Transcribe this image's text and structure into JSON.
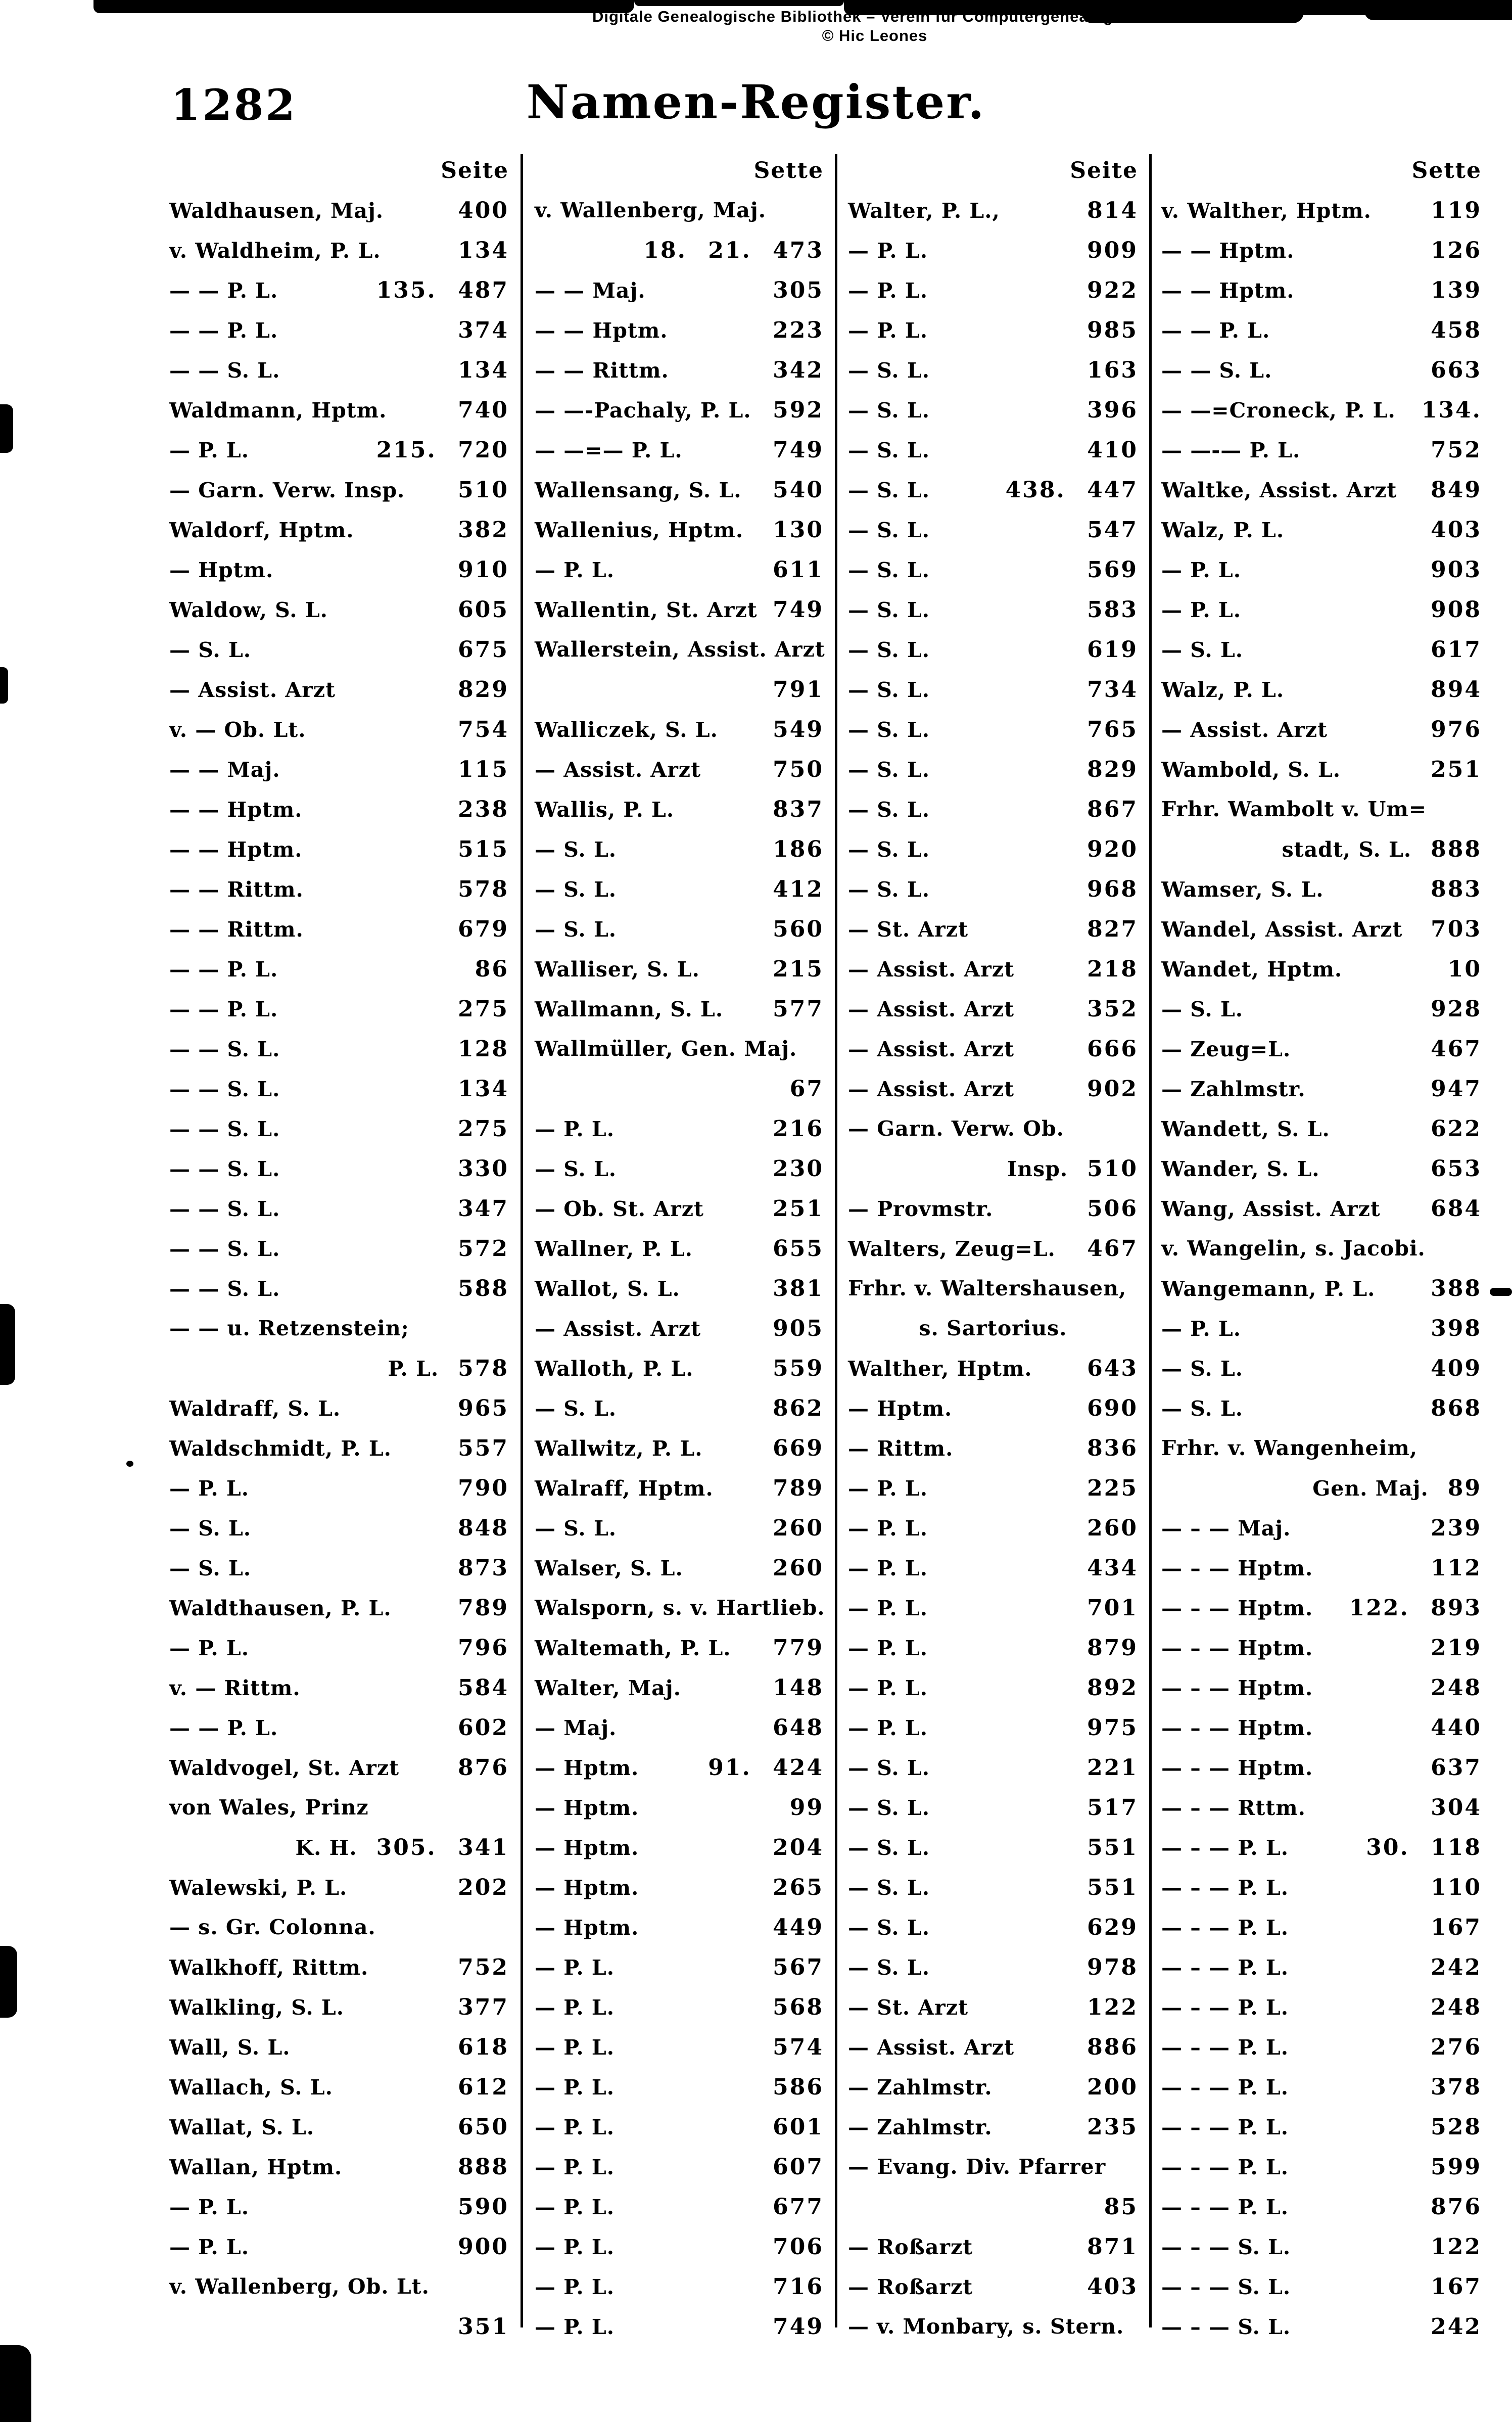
{
  "watermark": {
    "line1": "Digitale Genealogische Bibliothek – Verein fur Computergenealogie e V",
    "line2": "© Hic Leones"
  },
  "page": {
    "number": "1282",
    "title": "Namen-Register."
  },
  "columns": [
    {
      "header": "Seite",
      "rows": [
        {
          "t": "Waldhausen, Maj.",
          "p": "400"
        },
        {
          "t": "v. Waldheim, P. L.",
          "p": "134"
        },
        {
          "t": "— — P. L.",
          "p": "135. 487"
        },
        {
          "t": "— — P. L.",
          "p": "374"
        },
        {
          "t": "— — S. L.",
          "p": "134"
        },
        {
          "t": "Waldmann, Hptm.",
          "p": "740"
        },
        {
          "t": "— P. L.",
          "p": "215. 720"
        },
        {
          "t": "— Garn. Verw. Insp.",
          "p": "510"
        },
        {
          "t": "Waldorf, Hptm.",
          "p": "382"
        },
        {
          "t": "— Hptm.",
          "p": "910"
        },
        {
          "t": "Waldow, S. L.",
          "p": "605"
        },
        {
          "t": "— S. L.",
          "p": "675"
        },
        {
          "t": "— Assist. Arzt",
          "p": "829"
        },
        {
          "t": "v. — Ob. Lt.",
          "p": "754"
        },
        {
          "t": "— — Maj.",
          "p": "115"
        },
        {
          "t": "— — Hptm.",
          "p": "238"
        },
        {
          "t": "— — Hptm.",
          "p": "515"
        },
        {
          "t": "— — Rittm.",
          "p": "578"
        },
        {
          "t": "— — Rittm.",
          "p": "679"
        },
        {
          "t": "— — P. L.",
          "p": "86"
        },
        {
          "t": "— — P. L.",
          "p": "275"
        },
        {
          "t": "— — S. L.",
          "p": "128"
        },
        {
          "t": "— — S. L.",
          "p": "134"
        },
        {
          "t": "— — S. L.",
          "p": "275"
        },
        {
          "t": "— — S. L.",
          "p": "330"
        },
        {
          "t": "— — S. L.",
          "p": "347"
        },
        {
          "t": "— — S. L.",
          "p": "572"
        },
        {
          "t": "— — S. L.",
          "p": "588"
        },
        {
          "t": "— — u. Retzenstein;",
          "p": ""
        },
        {
          "t": "P. L.",
          "p": "578",
          "m": "r"
        },
        {
          "t": "Waldraff, S. L.",
          "p": "965"
        },
        {
          "t": "Waldschmidt, P. L.",
          "p": "557"
        },
        {
          "t": "— P. L.",
          "p": "790"
        },
        {
          "t": "— S. L.",
          "p": "848"
        },
        {
          "t": "— S. L.",
          "p": "873"
        },
        {
          "t": "Waldthausen, P. L.",
          "p": "789"
        },
        {
          "t": "— P. L.",
          "p": "796"
        },
        {
          "t": "v. — Rittm.",
          "p": "584"
        },
        {
          "t": "— — P. L.",
          "p": "602"
        },
        {
          "t": "Waldvogel, St. Arzt",
          "p": "876"
        },
        {
          "t": "von Wales, Prinz",
          "p": ""
        },
        {
          "t": "K. H.",
          "p": "305. 341",
          "m": "r"
        },
        {
          "t": "Walewski, P. L.",
          "p": "202"
        },
        {
          "t": "— s. Gr. Colonna.",
          "p": ""
        },
        {
          "t": "Walkhoff, Rittm.",
          "p": "752"
        },
        {
          "t": "Walkling, S. L.",
          "p": "377"
        },
        {
          "t": "Wall, S. L.",
          "p": "618"
        },
        {
          "t": "Wallach, S. L.",
          "p": "612"
        },
        {
          "t": "Wallat, S. L.",
          "p": "650"
        },
        {
          "t": "Wallan, Hptm.",
          "p": "888"
        },
        {
          "t": "— P. L.",
          "p": "590"
        },
        {
          "t": "— P. L.",
          "p": "900"
        },
        {
          "t": "v. Wallenberg, Ob. Lt.",
          "p": ""
        },
        {
          "t": "",
          "p": "351",
          "m": "r"
        }
      ]
    },
    {
      "header": "Sette",
      "rows": [
        {
          "t": "v. Wallenberg, Maj.",
          "p": ""
        },
        {
          "t": "",
          "p": "18. 21. 473",
          "m": "r"
        },
        {
          "t": "— — Maj.",
          "p": "305"
        },
        {
          "t": "— — Hptm.",
          "p": "223"
        },
        {
          "t": "— — Rittm.",
          "p": "342"
        },
        {
          "t": "— —-Pachaly, P. L.",
          "p": "592"
        },
        {
          "t": "— —=— P. L.",
          "p": "749"
        },
        {
          "t": "Wallensang, S. L.",
          "p": "540"
        },
        {
          "t": "Wallenius, Hptm.",
          "p": "130"
        },
        {
          "t": "— P. L.",
          "p": "611"
        },
        {
          "t": "Wallentin, St. Arzt",
          "p": "749"
        },
        {
          "t": "Wallerstein, Assist. Arzt",
          "p": ""
        },
        {
          "t": "",
          "p": "791",
          "m": "r"
        },
        {
          "t": "Walliczek, S. L.",
          "p": "549"
        },
        {
          "t": "— Assist. Arzt",
          "p": "750"
        },
        {
          "t": "Wallis, P. L.",
          "p": "837"
        },
        {
          "t": "— S. L.",
          "p": "186"
        },
        {
          "t": "— S. L.",
          "p": "412"
        },
        {
          "t": "— S. L.",
          "p": "560"
        },
        {
          "t": "Walliser, S. L.",
          "p": "215"
        },
        {
          "t": "Wallmann, S. L.",
          "p": "577"
        },
        {
          "t": "Wallmüller, Gen. Maj.",
          "p": ""
        },
        {
          "t": "",
          "p": "67",
          "m": "r"
        },
        {
          "t": "— P. L.",
          "p": "216"
        },
        {
          "t": "— S. L.",
          "p": "230"
        },
        {
          "t": "— Ob. St. Arzt",
          "p": "251"
        },
        {
          "t": "Wallner, P. L.",
          "p": "655"
        },
        {
          "t": "Wallot, S. L.",
          "p": "381"
        },
        {
          "t": "— Assist. Arzt",
          "p": "905"
        },
        {
          "t": "Walloth, P. L.",
          "p": "559"
        },
        {
          "t": "— S. L.",
          "p": "862"
        },
        {
          "t": "Wallwitz, P. L.",
          "p": "669"
        },
        {
          "t": "Walraff, Hptm.",
          "p": "789"
        },
        {
          "t": "— S. L.",
          "p": "260"
        },
        {
          "t": "Walser, S. L.",
          "p": "260"
        },
        {
          "t": "Walsporn, s. v. Hartlieb.",
          "p": ""
        },
        {
          "t": "Waltemath, P. L.",
          "p": "779"
        },
        {
          "t": "Walter, Maj.",
          "p": "148"
        },
        {
          "t": "— Maj.",
          "p": "648"
        },
        {
          "t": "— Hptm.",
          "p": "91. 424"
        },
        {
          "t": "— Hptm.",
          "p": "99"
        },
        {
          "t": "— Hptm.",
          "p": "204"
        },
        {
          "t": "— Hptm.",
          "p": "265"
        },
        {
          "t": "— Hptm.",
          "p": "449"
        },
        {
          "t": "— P. L.",
          "p": "567"
        },
        {
          "t": "— P. L.",
          "p": "568"
        },
        {
          "t": "— P. L.",
          "p": "574"
        },
        {
          "t": "— P. L.",
          "p": "586"
        },
        {
          "t": "— P. L.",
          "p": "601"
        },
        {
          "t": "— P. L.",
          "p": "607"
        },
        {
          "t": "— P. L.",
          "p": "677"
        },
        {
          "t": "— P. L.",
          "p": "706"
        },
        {
          "t": "— P. L.",
          "p": "716"
        },
        {
          "t": "— P. L.",
          "p": "749"
        }
      ]
    },
    {
      "header": "Seite",
      "rows": [
        {
          "t": "Walter, P. L.,",
          "p": "814"
        },
        {
          "t": "— P. L.",
          "p": "909"
        },
        {
          "t": "— P. L.",
          "p": "922"
        },
        {
          "t": "— P. L.",
          "p": "985"
        },
        {
          "t": "— S. L.",
          "p": "163"
        },
        {
          "t": "— S. L.",
          "p": "396"
        },
        {
          "t": "— S. L.",
          "p": "410"
        },
        {
          "t": "— S. L.",
          "p": "438. 447"
        },
        {
          "t": "— S. L.",
          "p": "547"
        },
        {
          "t": "— S. L.",
          "p": "569"
        },
        {
          "t": "— S. L.",
          "p": "583"
        },
        {
          "t": "— S. L.",
          "p": "619"
        },
        {
          "t": "— S. L.",
          "p": "734"
        },
        {
          "t": "— S. L.",
          "p": "765"
        },
        {
          "t": "— S. L.",
          "p": "829"
        },
        {
          "t": "— S. L.",
          "p": "867"
        },
        {
          "t": "— S. L.",
          "p": "920"
        },
        {
          "t": "— S. L.",
          "p": "968"
        },
        {
          "t": "— St. Arzt",
          "p": "827"
        },
        {
          "t": "— Assist. Arzt",
          "p": "218"
        },
        {
          "t": "— Assist. Arzt",
          "p": "352"
        },
        {
          "t": "— Assist. Arzt",
          "p": "666"
        },
        {
          "t": "— Assist. Arzt",
          "p": "902"
        },
        {
          "t": "— Garn. Verw. Ob.",
          "p": ""
        },
        {
          "t": "Insp.",
          "p": "510",
          "m": "r"
        },
        {
          "t": "— Provmstr.",
          "p": "506"
        },
        {
          "t": "Walters, Zeug=L.",
          "p": "467"
        },
        {
          "t": "Frhr. v. Waltershausen,",
          "p": ""
        },
        {
          "t": "s. Sartorius.",
          "p": "",
          "m": "c"
        },
        {
          "t": "Walther, Hptm.",
          "p": "643"
        },
        {
          "t": "— Hptm.",
          "p": "690"
        },
        {
          "t": "— Rittm.",
          "p": "836"
        },
        {
          "t": "— P. L.",
          "p": "225"
        },
        {
          "t": "— P. L.",
          "p": "260"
        },
        {
          "t": "— P. L.",
          "p": "434"
        },
        {
          "t": "— P. L.",
          "p": "701"
        },
        {
          "t": "— P. L.",
          "p": "879"
        },
        {
          "t": "— P. L.",
          "p": "892"
        },
        {
          "t": "— P. L.",
          "p": "975"
        },
        {
          "t": "— S. L.",
          "p": "221"
        },
        {
          "t": "— S. L.",
          "p": "517"
        },
        {
          "t": "— S. L.",
          "p": "551"
        },
        {
          "t": "— S. L.",
          "p": "551"
        },
        {
          "t": "— S. L.",
          "p": "629"
        },
        {
          "t": "— S. L.",
          "p": "978"
        },
        {
          "t": "— St. Arzt",
          "p": "122"
        },
        {
          "t": "— Assist. Arzt",
          "p": "886"
        },
        {
          "t": "— Zahlmstr.",
          "p": "200"
        },
        {
          "t": "— Zahlmstr.",
          "p": "235"
        },
        {
          "t": "— Evang. Div. Pfarrer",
          "p": ""
        },
        {
          "t": "",
          "p": "85",
          "m": "r"
        },
        {
          "t": "— Roßarzt",
          "p": "871"
        },
        {
          "t": "— Roßarzt",
          "p": "403"
        },
        {
          "t": "— v. Monbary, s. Stern.",
          "p": ""
        }
      ]
    },
    {
      "header": "Sette",
      "rows": [
        {
          "t": "v. Walther, Hptm.",
          "p": "119"
        },
        {
          "t": "— — Hptm.",
          "p": "126"
        },
        {
          "t": "— — Hptm.",
          "p": "139"
        },
        {
          "t": "— — P. L.",
          "p": "458"
        },
        {
          "t": "— — S. L.",
          "p": "663"
        },
        {
          "t": "— —=Croneck, P. L.",
          "p": "134."
        },
        {
          "t": "— —-— P. L.",
          "p": "752"
        },
        {
          "t": "Waltke, Assist. Arzt",
          "p": "849"
        },
        {
          "t": "Walz, P. L.",
          "p": "403"
        },
        {
          "t": "— P. L.",
          "p": "903"
        },
        {
          "t": "— P. L.",
          "p": "908"
        },
        {
          "t": "— S. L.",
          "p": "617"
        },
        {
          "t": "Walz, P. L.",
          "p": "894"
        },
        {
          "t": "— Assist. Arzt",
          "p": "976"
        },
        {
          "t": "Wambold, S. L.",
          "p": "251"
        },
        {
          "t": "Frhr. Wambolt v. Um=",
          "p": ""
        },
        {
          "t": "stadt, S. L.",
          "p": "888",
          "m": "r"
        },
        {
          "t": "Wamser, S. L.",
          "p": "883"
        },
        {
          "t": "Wandel, Assist. Arzt",
          "p": "703"
        },
        {
          "t": "Wandet, Hptm.",
          "p": "10"
        },
        {
          "t": "— S. L.",
          "p": "928"
        },
        {
          "t": "— Zeug=L.",
          "p": "467"
        },
        {
          "t": "— Zahlmstr.",
          "p": "947"
        },
        {
          "t": "Wandett, S. L.",
          "p": "622"
        },
        {
          "t": "Wander, S. L.",
          "p": "653"
        },
        {
          "t": "Wang, Assist. Arzt",
          "p": "684"
        },
        {
          "t": "v. Wangelin, s. Jacobi.",
          "p": ""
        },
        {
          "t": "Wangemann, P. L.",
          "p": "388"
        },
        {
          "t": "— P. L.",
          "p": "398"
        },
        {
          "t": "— S. L.",
          "p": "409"
        },
        {
          "t": "— S. L.",
          "p": "868"
        },
        {
          "t": "Frhr. v. Wangenheim,",
          "p": ""
        },
        {
          "t": "Gen. Maj.",
          "p": "89",
          "m": "r"
        },
        {
          "t": "— – — Maj.",
          "p": "239"
        },
        {
          "t": "— – — Hptm.",
          "p": "112"
        },
        {
          "t": "— – — Hptm.",
          "p": "122. 893"
        },
        {
          "t": "— – — Hptm.",
          "p": "219"
        },
        {
          "t": "— – — Hptm.",
          "p": "248"
        },
        {
          "t": "— – — Hptm.",
          "p": "440"
        },
        {
          "t": "— – — Hptm.",
          "p": "637"
        },
        {
          "t": "— – — Rttm.",
          "p": "304"
        },
        {
          "t": "— – — P. L.",
          "p": "30. 118"
        },
        {
          "t": "— – — P. L.",
          "p": "110"
        },
        {
          "t": "— – — P. L.",
          "p": "167"
        },
        {
          "t": "— – — P. L.",
          "p": "242"
        },
        {
          "t": "— – — P. L.",
          "p": "248"
        },
        {
          "t": "— – — P. L.",
          "p": "276"
        },
        {
          "t": "— – — P. L.",
          "p": "378"
        },
        {
          "t": "— – — P. L.",
          "p": "528"
        },
        {
          "t": "— – — P. L.",
          "p": "599"
        },
        {
          "t": "— – — P. L.",
          "p": "876"
        },
        {
          "t": "— – — S. L.",
          "p": "122"
        },
        {
          "t": "— – — S. L.",
          "p": "167"
        },
        {
          "t": "— – — S. L.",
          "p": "242"
        }
      ]
    }
  ]
}
